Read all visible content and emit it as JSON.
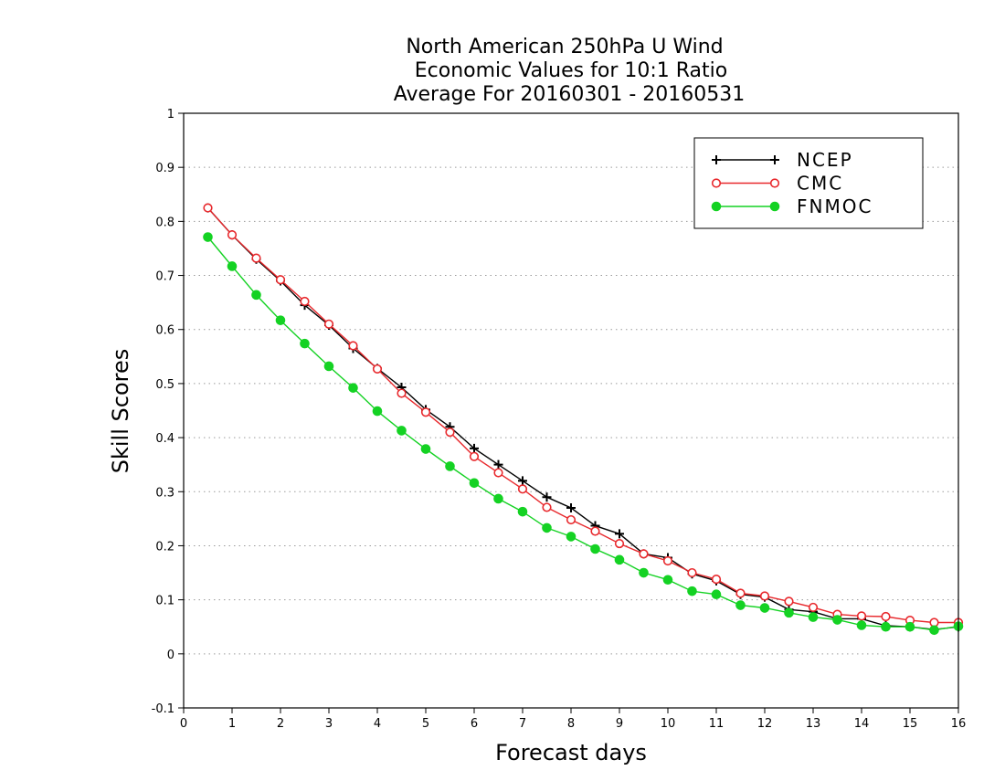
{
  "chart_data": {
    "type": "line",
    "title": [
      "North American 250hPa U Wind",
      "Economic Values for 10:1 Ratio",
      "Average For 20160301 - 20160531"
    ],
    "xlabel": "Forecast days",
    "ylabel": "Skill Scores",
    "xlim": [
      0,
      16
    ],
    "ylim": [
      -0.1,
      1
    ],
    "xticks": [
      0,
      1,
      2,
      3,
      4,
      5,
      6,
      7,
      8,
      9,
      10,
      11,
      12,
      13,
      14,
      15,
      16
    ],
    "yticks": [
      -0.1,
      0,
      0.1,
      0.2,
      0.3,
      0.4,
      0.5,
      0.6,
      0.7,
      0.8,
      0.9,
      1
    ],
    "ytick_labels": [
      "-0.1",
      "0",
      "0.1",
      "0.2",
      "0.3",
      "0.4",
      "0.5",
      "0.6",
      "0.7",
      "0.8",
      "0.9",
      "1"
    ],
    "grid": true,
    "legend_position": "top-right",
    "x": [
      0.5,
      1,
      1.5,
      2,
      2.5,
      3,
      3.5,
      4,
      4.5,
      5,
      5.5,
      6,
      6.5,
      7,
      7.5,
      8,
      8.5,
      9,
      9.5,
      10,
      10.5,
      11,
      11.5,
      12,
      12.5,
      13,
      13.5,
      14,
      14.5,
      15,
      15.5,
      16
    ],
    "series": [
      {
        "name": "NCEP",
        "color": "#000000",
        "marker": "plus",
        "values": [
          0.825,
          0.775,
          0.73,
          0.69,
          0.645,
          0.608,
          0.565,
          0.528,
          0.493,
          0.452,
          0.42,
          0.38,
          0.35,
          0.32,
          0.29,
          0.27,
          0.237,
          0.222,
          0.185,
          0.178,
          0.148,
          0.135,
          0.11,
          0.105,
          0.082,
          0.078,
          0.065,
          0.065,
          0.052,
          0.05,
          0.045,
          0.05
        ]
      },
      {
        "name": "CMC",
        "color": "#e8292d",
        "marker": "open-circle",
        "values": [
          0.825,
          0.775,
          0.732,
          0.692,
          0.652,
          0.61,
          0.57,
          0.527,
          0.482,
          0.447,
          0.41,
          0.365,
          0.335,
          0.305,
          0.271,
          0.248,
          0.227,
          0.204,
          0.185,
          0.172,
          0.15,
          0.138,
          0.112,
          0.107,
          0.097,
          0.086,
          0.073,
          0.07,
          0.069,
          0.062,
          0.058,
          0.058
        ]
      },
      {
        "name": "FNMOC",
        "color": "#14d223",
        "marker": "filled-circle",
        "values": [
          0.771,
          0.717,
          0.664,
          0.617,
          0.574,
          0.532,
          0.492,
          0.449,
          0.413,
          0.379,
          0.347,
          0.316,
          0.287,
          0.263,
          0.233,
          0.217,
          0.194,
          0.174,
          0.15,
          0.137,
          0.116,
          0.11,
          0.09,
          0.085,
          0.076,
          0.068,
          0.063,
          0.053,
          0.05,
          0.05,
          0.044,
          0.051
        ]
      }
    ]
  }
}
